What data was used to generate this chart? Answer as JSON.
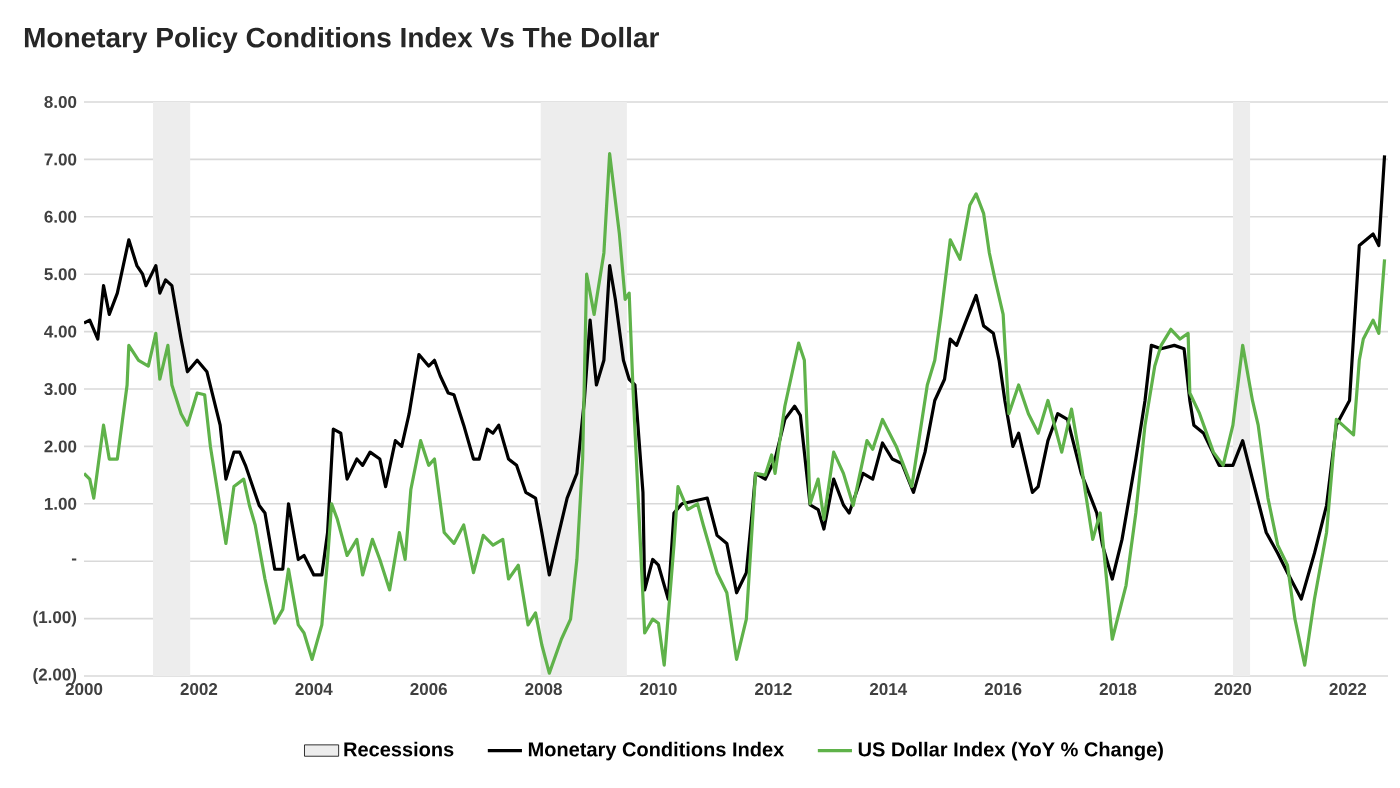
{
  "chart_data": {
    "type": "line",
    "title": "Monetary Policy Conditions Index Vs The Dollar",
    "xlim": [
      2000,
      2022.7
    ],
    "xticks": [
      2000,
      2002,
      2004,
      2006,
      2008,
      2010,
      2012,
      2014,
      2016,
      2018,
      2020,
      2022
    ],
    "ylim": [
      -2,
      8
    ],
    "yticks": [
      {
        "value": -2,
        "label": "(2.00)"
      },
      {
        "value": -1,
        "label": "(1.00)"
      },
      {
        "value": 0,
        "label": "-"
      },
      {
        "value": 1,
        "label": "1.00"
      },
      {
        "value": 2,
        "label": "2.00"
      },
      {
        "value": 3,
        "label": "3.00"
      },
      {
        "value": 4,
        "label": "4.00"
      },
      {
        "value": 5,
        "label": "5.00"
      },
      {
        "value": 6,
        "label": "6.00"
      },
      {
        "value": 7,
        "label": "7.00"
      },
      {
        "value": 8,
        "label": "8.00"
      }
    ],
    "grid": "y",
    "legend": "bottom",
    "bands": [
      {
        "axis": "x",
        "from": 2001.2,
        "to": 2001.85,
        "label": "Recessions",
        "color": "#ededed"
      },
      {
        "axis": "x",
        "from": 2007.95,
        "to": 2009.45,
        "color": "#ededed"
      },
      {
        "axis": "x",
        "from": 2020.0,
        "to": 2020.3,
        "color": "#ededed"
      }
    ],
    "series": [
      {
        "name": "Monetary Conditions Index",
        "color": "#000000",
        "x": [
          2000.0,
          2000.1,
          2000.24,
          2000.34,
          2000.44,
          2000.58,
          2000.78,
          2000.92,
          2001.02,
          2001.08,
          2001.25,
          2001.32,
          2001.42,
          2001.53,
          2001.69,
          2001.8,
          2001.97,
          2002.14,
          2002.37,
          2002.47,
          2002.61,
          2002.71,
          2002.81,
          2003.05,
          2003.15,
          2003.32,
          2003.46,
          2003.56,
          2003.73,
          2003.83,
          2004.0,
          2004.14,
          2004.24,
          2004.34,
          2004.47,
          2004.58,
          2004.75,
          2004.85,
          2004.98,
          2005.15,
          2005.25,
          2005.42,
          2005.53,
          2005.66,
          2005.83,
          2006.0,
          2006.1,
          2006.2,
          2006.34,
          2006.44,
          2006.61,
          2006.78,
          2006.88,
          2007.02,
          2007.12,
          2007.22,
          2007.39,
          2007.53,
          2007.69,
          2007.86,
          2007.97,
          2008.1,
          2008.24,
          2008.41,
          2008.58,
          2008.71,
          2008.81,
          2008.92,
          2009.05,
          2009.15,
          2009.25,
          2009.39,
          2009.49,
          2009.59,
          2009.73,
          2009.76,
          2009.9,
          2010.0,
          2010.17,
          2010.27,
          2010.41,
          2010.85,
          2011.02,
          2011.19,
          2011.36,
          2011.53,
          2011.63,
          2011.69,
          2011.86,
          2012.03,
          2012.2,
          2012.37,
          2012.47,
          2012.64,
          2012.78,
          2012.88,
          2013.05,
          2013.22,
          2013.32,
          2013.56,
          2013.73,
          2013.9,
          2014.07,
          2014.24,
          2014.44,
          2014.64,
          2014.81,
          2014.98,
          2015.08,
          2015.19,
          2015.36,
          2015.53,
          2015.66,
          2015.83,
          2015.93,
          2016.03,
          2016.17,
          2016.27,
          2016.51,
          2016.61,
          2016.78,
          2016.95,
          2017.12,
          2017.36,
          2017.53,
          2017.63,
          2017.73,
          2017.9,
          2018.07,
          2018.31,
          2018.47,
          2018.58,
          2018.75,
          2018.98,
          2019.15,
          2019.25,
          2019.32,
          2019.49,
          2019.76,
          2020.0,
          2020.17,
          2020.34,
          2020.58,
          2020.78,
          2020.95,
          2021.19,
          2021.42,
          2021.63,
          2021.8,
          2022.03,
          2022.2,
          2022.44,
          2022.54,
          2022.64
        ],
        "values": [
          4.15,
          4.2,
          3.87,
          4.8,
          4.3,
          4.67,
          5.6,
          5.15,
          5.0,
          4.8,
          5.15,
          4.67,
          4.9,
          4.8,
          3.87,
          3.3,
          3.5,
          3.3,
          2.37,
          1.43,
          1.9,
          1.9,
          1.67,
          0.97,
          0.84,
          -0.14,
          -0.14,
          1.0,
          0.03,
          0.1,
          -0.24,
          -0.24,
          0.5,
          2.3,
          2.23,
          1.43,
          1.78,
          1.67,
          1.9,
          1.78,
          1.3,
          2.1,
          2.0,
          2.57,
          3.6,
          3.4,
          3.5,
          3.23,
          2.93,
          2.9,
          2.37,
          1.78,
          1.78,
          2.3,
          2.23,
          2.37,
          1.78,
          1.67,
          1.2,
          1.1,
          0.5,
          -0.24,
          0.38,
          1.1,
          1.53,
          2.8,
          4.2,
          3.07,
          3.5,
          5.15,
          4.56,
          3.5,
          3.17,
          3.07,
          1.2,
          -0.5,
          0.03,
          -0.07,
          -0.66,
          0.84,
          1.0,
          1.1,
          0.45,
          0.31,
          -0.55,
          -0.2,
          0.84,
          1.53,
          1.43,
          1.78,
          2.47,
          2.7,
          2.54,
          0.98,
          0.9,
          0.56,
          1.43,
          0.98,
          0.84,
          1.53,
          1.43,
          2.06,
          1.78,
          1.7,
          1.2,
          1.9,
          2.8,
          3.17,
          3.87,
          3.76,
          4.2,
          4.63,
          4.1,
          3.97,
          3.5,
          2.8,
          2.0,
          2.23,
          1.2,
          1.3,
          2.1,
          2.57,
          2.47,
          1.53,
          1.1,
          0.84,
          0.28,
          -0.31,
          0.38,
          1.78,
          2.8,
          3.76,
          3.7,
          3.76,
          3.7,
          2.8,
          2.37,
          2.23,
          1.67,
          1.67,
          2.1,
          1.43,
          0.5,
          0.14,
          -0.2,
          -0.66,
          0.14,
          0.97,
          2.37,
          2.8,
          5.5,
          5.7,
          5.5,
          7.07
        ]
      },
      {
        "name": "US Dollar Index (YoY % Change)",
        "color": "#5fb24a",
        "x": [
          2000.0,
          2000.1,
          2000.17,
          2000.34,
          2000.44,
          2000.58,
          2000.75,
          2000.78,
          2000.95,
          2001.12,
          2001.25,
          2001.32,
          2001.46,
          2001.53,
          2001.69,
          2001.8,
          2001.97,
          2002.1,
          2002.2,
          2002.47,
          2002.61,
          2002.78,
          2002.88,
          2002.98,
          2003.15,
          2003.32,
          2003.46,
          2003.56,
          2003.73,
          2003.83,
          2003.97,
          2004.14,
          2004.24,
          2004.31,
          2004.41,
          2004.58,
          2004.75,
          2004.85,
          2005.02,
          2005.15,
          2005.32,
          2005.49,
          2005.59,
          2005.69,
          2005.86,
          2006.0,
          2006.1,
          2006.27,
          2006.44,
          2006.61,
          2006.78,
          2006.95,
          2007.12,
          2007.29,
          2007.39,
          2007.56,
          2007.73,
          2007.86,
          2007.97,
          2008.1,
          2008.31,
          2008.47,
          2008.58,
          2008.68,
          2008.75,
          2008.88,
          2009.05,
          2009.15,
          2009.32,
          2009.42,
          2009.49,
          2009.56,
          2009.66,
          2009.76,
          2009.9,
          2010.0,
          2010.1,
          2010.27,
          2010.34,
          2010.51,
          2010.68,
          2010.78,
          2011.02,
          2011.19,
          2011.36,
          2011.53,
          2011.69,
          2011.86,
          2011.97,
          2012.03,
          2012.2,
          2012.44,
          2012.54,
          2012.64,
          2012.78,
          2012.88,
          2013.05,
          2013.22,
          2013.39,
          2013.63,
          2013.73,
          2013.9,
          2014.14,
          2014.41,
          2014.68,
          2014.81,
          2014.92,
          2015.08,
          2015.25,
          2015.42,
          2015.53,
          2015.66,
          2015.76,
          2015.86,
          2016.0,
          2016.1,
          2016.27,
          2016.44,
          2016.61,
          2016.78,
          2017.02,
          2017.19,
          2017.36,
          2017.56,
          2017.69,
          2017.9,
          2018.14,
          2018.31,
          2018.47,
          2018.64,
          2018.75,
          2018.92,
          2019.08,
          2019.22,
          2019.25,
          2019.42,
          2019.66,
          2019.83,
          2020.0,
          2020.17,
          2020.34,
          2020.44,
          2020.61,
          2020.78,
          2020.95,
          2021.08,
          2021.25,
          2021.42,
          2021.63,
          2021.8,
          2022.1,
          2022.2,
          2022.27,
          2022.44,
          2022.54,
          2022.64
        ],
        "values": [
          1.53,
          1.43,
          1.1,
          2.37,
          1.78,
          1.78,
          3.07,
          3.76,
          3.5,
          3.4,
          3.97,
          3.17,
          3.76,
          3.07,
          2.57,
          2.37,
          2.93,
          2.9,
          2.0,
          0.31,
          1.3,
          1.43,
          0.97,
          0.63,
          -0.31,
          -1.08,
          -0.84,
          -0.14,
          -1.11,
          -1.25,
          -1.71,
          -1.11,
          0.03,
          1.0,
          0.73,
          0.1,
          0.38,
          -0.24,
          0.38,
          0.03,
          -0.5,
          0.5,
          0.03,
          1.25,
          2.1,
          1.67,
          1.78,
          0.5,
          0.31,
          0.63,
          -0.2,
          0.45,
          0.28,
          0.38,
          -0.31,
          -0.07,
          -1.11,
          -0.9,
          -1.46,
          -1.95,
          -1.36,
          -1.01,
          0.03,
          1.78,
          5.0,
          4.3,
          5.37,
          7.1,
          5.7,
          4.56,
          4.67,
          2.93,
          0.84,
          -1.25,
          -1.01,
          -1.08,
          -1.81,
          0.28,
          1.3,
          0.9,
          1.0,
          0.63,
          -0.2,
          -0.55,
          -1.71,
          -1.01,
          1.53,
          1.5,
          1.85,
          1.53,
          2.7,
          3.8,
          3.5,
          1.0,
          1.43,
          0.73,
          1.9,
          1.53,
          0.97,
          2.1,
          1.95,
          2.47,
          2.0,
          1.3,
          3.07,
          3.5,
          4.3,
          5.6,
          5.26,
          6.2,
          6.4,
          6.06,
          5.37,
          4.9,
          4.3,
          2.57,
          3.07,
          2.57,
          2.23,
          2.8,
          1.9,
          2.65,
          1.67,
          0.38,
          0.84,
          -1.36,
          -0.42,
          0.84,
          2.37,
          3.4,
          3.76,
          4.04,
          3.87,
          3.97,
          2.93,
          2.57,
          1.9,
          1.67,
          2.37,
          3.76,
          2.8,
          2.37,
          1.1,
          0.28,
          -0.07,
          -1.01,
          -1.81,
          -0.66,
          0.5,
          2.47,
          2.2,
          3.5,
          3.87,
          4.2,
          3.97,
          5.26
        ]
      }
    ]
  }
}
